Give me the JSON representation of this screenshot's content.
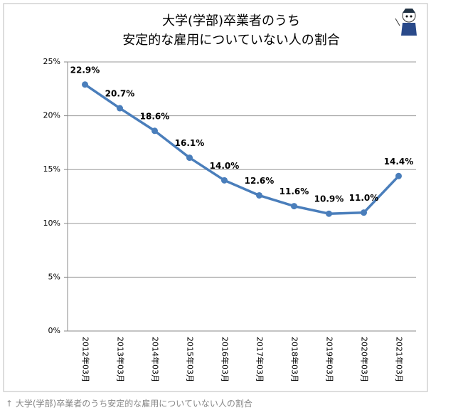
{
  "chart_data": {
    "type": "line",
    "title": [
      "大学(学部)卒業者のうち",
      "安定的な雇用についていない人の割合"
    ],
    "categories": [
      "2012年03月",
      "2013年03月",
      "2014年03月",
      "2015年03月",
      "2016年03月",
      "2017年03月",
      "2018年03月",
      "2019年03月",
      "2020年03月",
      "2021年03月"
    ],
    "values": [
      22.9,
      20.7,
      18.6,
      16.1,
      14.0,
      12.6,
      11.6,
      10.9,
      11.0,
      14.4
    ],
    "value_labels": [
      "22.9%",
      "20.7%",
      "18.6%",
      "16.1%",
      "14.0%",
      "12.6%",
      "11.6%",
      "10.9%",
      "11.0%",
      "14.4%"
    ],
    "color": "#4a7ebb",
    "ylim": [
      0,
      25
    ],
    "yticks": [
      {
        "value": 0,
        "label": "0%"
      },
      {
        "value": 5,
        "label": "5%"
      },
      {
        "value": 10,
        "label": "10%"
      },
      {
        "value": 15,
        "label": "15%"
      },
      {
        "value": 20,
        "label": "20%"
      },
      {
        "value": 25,
        "label": "25%"
      }
    ],
    "grid": true
  },
  "caption": "↑ 大学(学部)卒業者のうち安定的な雇用についていない人の割合"
}
